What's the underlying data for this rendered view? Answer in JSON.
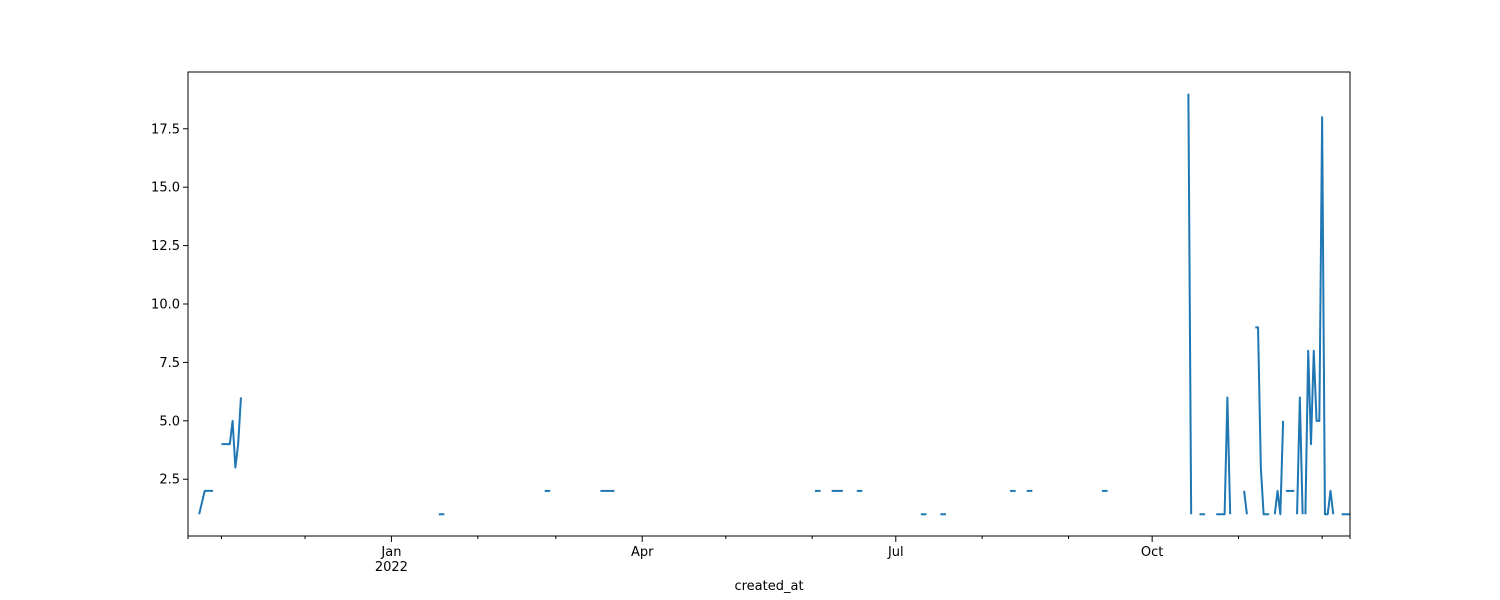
{
  "chart_data": {
    "type": "line",
    "title": "",
    "xlabel": "created_at",
    "ylabel": "",
    "xlim": [
      "2021-10-20",
      "2022-12-11"
    ],
    "ylim": [
      0.07,
      19.93
    ],
    "grid": false,
    "legend": "none",
    "line_color": "#1f77b4",
    "x_major_ticks": [
      {
        "date": "2022-01-01",
        "label": "Jan",
        "sublabel": "2022"
      },
      {
        "date": "2022-04-01",
        "label": "Apr",
        "sublabel": ""
      },
      {
        "date": "2022-07-01",
        "label": "Jul",
        "sublabel": ""
      },
      {
        "date": "2022-10-01",
        "label": "Oct",
        "sublabel": ""
      }
    ],
    "x_minor_ticks": [
      "2021-10-20",
      "2021-11-01",
      "2021-12-01",
      "2022-02-01",
      "2022-03-01",
      "2022-05-01",
      "2022-06-01",
      "2022-08-01",
      "2022-09-01",
      "2022-11-01",
      "2022-12-01",
      "2022-12-11"
    ],
    "y_ticks": [
      {
        "value": 2.5,
        "label": "2.5"
      },
      {
        "value": 5.0,
        "label": "5.0"
      },
      {
        "value": 7.5,
        "label": "7.5"
      },
      {
        "value": 10.0,
        "label": "10.0"
      },
      {
        "value": 12.5,
        "label": "12.5"
      },
      {
        "value": 15.0,
        "label": "15.0"
      },
      {
        "value": 17.5,
        "label": "17.5"
      }
    ],
    "series": [
      {
        "name": "",
        "segments": [
          [
            [
              "2021-10-24",
              1
            ],
            [
              "2021-10-26",
              2
            ],
            [
              "2021-10-29",
              2
            ]
          ],
          [
            [
              "2021-11-01",
              4
            ],
            [
              "2021-11-04",
              4
            ],
            [
              "2021-11-05",
              5
            ],
            [
              "2021-11-06",
              3
            ],
            [
              "2021-11-07",
              4
            ],
            [
              "2021-11-08",
              6
            ]
          ],
          [
            [
              "2022-01-18",
              1
            ],
            [
              "2022-01-20",
              1
            ]
          ],
          [
            [
              "2022-02-25",
              2
            ],
            [
              "2022-02-27",
              2
            ]
          ],
          [
            [
              "2022-03-17",
              2
            ],
            [
              "2022-03-22",
              2
            ]
          ],
          [
            [
              "2022-06-02",
              2
            ],
            [
              "2022-06-04",
              2
            ]
          ],
          [
            [
              "2022-06-08",
              2
            ],
            [
              "2022-06-12",
              2
            ]
          ],
          [
            [
              "2022-06-17",
              2
            ],
            [
              "2022-06-19",
              2
            ]
          ],
          [
            [
              "2022-07-10",
              1
            ],
            [
              "2022-07-12",
              1
            ]
          ],
          [
            [
              "2022-07-17",
              1
            ],
            [
              "2022-07-19",
              1
            ]
          ],
          [
            [
              "2022-08-11",
              2
            ],
            [
              "2022-08-13",
              2
            ]
          ],
          [
            [
              "2022-08-17",
              2
            ],
            [
              "2022-08-19",
              2
            ]
          ],
          [
            [
              "2022-09-13",
              2
            ],
            [
              "2022-09-15",
              2
            ]
          ],
          [
            [
              "2022-10-14",
              19
            ],
            [
              "2022-10-15",
              1
            ]
          ],
          [
            [
              "2022-10-18",
              1
            ],
            [
              "2022-10-20",
              1
            ]
          ],
          [
            [
              "2022-10-24",
              1
            ],
            [
              "2022-10-27",
              1
            ],
            [
              "2022-10-28",
              6
            ],
            [
              "2022-10-29",
              1
            ]
          ],
          [
            [
              "2022-11-03",
              2
            ],
            [
              "2022-11-04",
              1
            ]
          ],
          [
            [
              "2022-11-07",
              9
            ],
            [
              "2022-11-08",
              9
            ],
            [
              "2022-11-09",
              3
            ],
            [
              "2022-11-10",
              1
            ],
            [
              "2022-11-12",
              1
            ]
          ],
          [
            [
              "2022-11-14",
              1
            ],
            [
              "2022-11-15",
              2
            ],
            [
              "2022-11-16",
              1
            ],
            [
              "2022-11-17",
              5
            ]
          ],
          [
            [
              "2022-11-18",
              2
            ],
            [
              "2022-11-21",
              2
            ]
          ],
          [
            [
              "2022-11-22",
              1
            ],
            [
              "2022-11-23",
              6
            ],
            [
              "2022-11-24",
              1
            ]
          ],
          [
            [
              "2022-11-25",
              1
            ],
            [
              "2022-11-26",
              8
            ],
            [
              "2022-11-27",
              4
            ],
            [
              "2022-11-28",
              8
            ],
            [
              "2022-11-29",
              5
            ],
            [
              "2022-11-30",
              5
            ],
            [
              "2022-12-01",
              18
            ],
            [
              "2022-12-02",
              1
            ],
            [
              "2022-12-03",
              1
            ],
            [
              "2022-12-04",
              2
            ],
            [
              "2022-12-05",
              1
            ]
          ],
          [
            [
              "2022-12-08",
              1
            ],
            [
              "2022-12-11",
              1
            ]
          ]
        ]
      }
    ]
  }
}
